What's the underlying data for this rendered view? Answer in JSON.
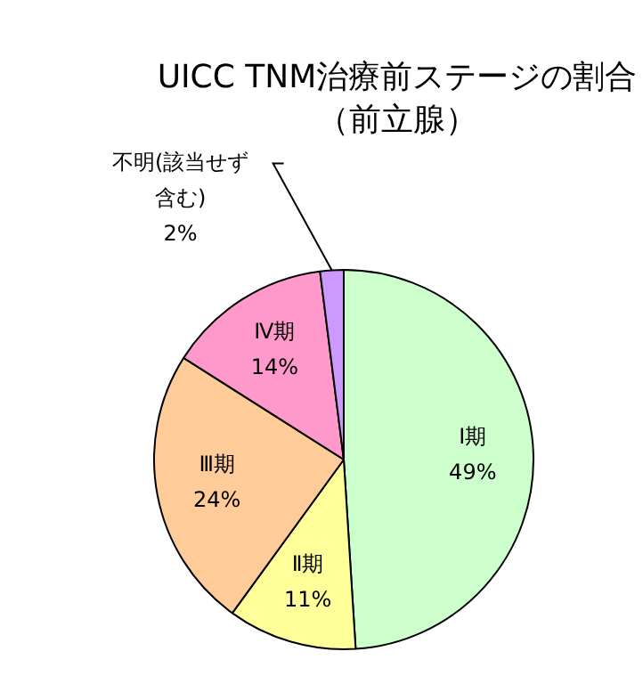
{
  "chart_data": {
    "type": "pie",
    "title": "UICC TNM治療前ステージの割合（前立腺）",
    "categories": [
      "Ⅰ期",
      "Ⅱ期",
      "Ⅲ期",
      "Ⅳ期",
      "不明(該当せず含む)"
    ],
    "values": [
      49,
      11,
      24,
      14,
      2
    ],
    "value_labels": [
      "49%",
      "11%",
      "24%",
      "14%",
      "2%"
    ],
    "colors": [
      "#ccffcc",
      "#ffff99",
      "#ffcc99",
      "#ff99cc",
      "#cc99ff"
    ],
    "legend": false
  }
}
